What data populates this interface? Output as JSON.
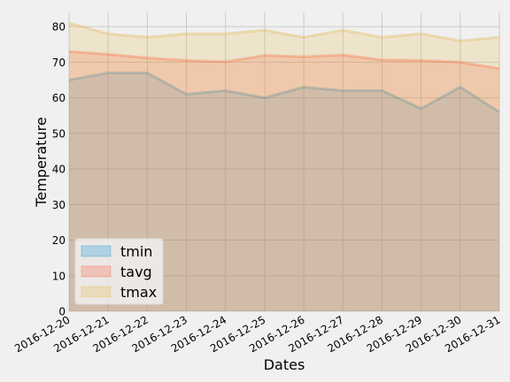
{
  "chart_data": {
    "type": "area",
    "title": "",
    "xlabel": "Dates",
    "ylabel": "Temperature",
    "ylim": [
      0,
      84
    ],
    "yticks": [
      0,
      10,
      20,
      30,
      40,
      50,
      60,
      70,
      80
    ],
    "x": [
      "2016-12-20",
      "2016-12-21",
      "2016-12-22",
      "2016-12-23",
      "2016-12-24",
      "2016-12-25",
      "2016-12-26",
      "2016-12-27",
      "2016-12-28",
      "2016-12-29",
      "2016-12-30",
      "2016-12-31"
    ],
    "grid": true,
    "legend_position": "lower-left",
    "series": [
      {
        "name": "tmin",
        "color": "#008fd5",
        "values": [
          65,
          67,
          67,
          61,
          62,
          60,
          63,
          62,
          62,
          57,
          63,
          56
        ]
      },
      {
        "name": "tavg",
        "color": "#fc4f30",
        "values": [
          73,
          72.2,
          71.2,
          70.5,
          70.1,
          71.9,
          71.5,
          72,
          70.6,
          70.5,
          70,
          68.2
        ]
      },
      {
        "name": "tmax",
        "color": "#e5ae38",
        "values": [
          81,
          78,
          77,
          78,
          78,
          79,
          77,
          79,
          77,
          78,
          76,
          77
        ]
      }
    ]
  }
}
